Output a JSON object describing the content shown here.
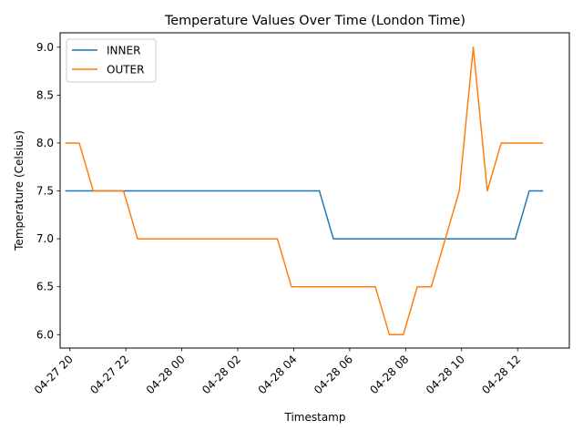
{
  "chart_data": {
    "type": "line",
    "title": "Temperature Values Over Time (London Time)",
    "xlabel": "Timestamp",
    "ylabel": "Temperature (Celsius)",
    "x_range": [
      "2026-04-27T19:39",
      "2026-04-28T13:51"
    ],
    "x_ticks": [
      {
        "t": "2026-04-27T20:00",
        "label": "04-27 20"
      },
      {
        "t": "2026-04-27T22:00",
        "label": "04-27 22"
      },
      {
        "t": "2026-04-28T00:00",
        "label": "04-28 00"
      },
      {
        "t": "2026-04-28T02:00",
        "label": "04-28 02"
      },
      {
        "t": "2026-04-28T04:00",
        "label": "04-28 04"
      },
      {
        "t": "2026-04-28T06:00",
        "label": "04-28 06"
      },
      {
        "t": "2026-04-28T08:00",
        "label": "04-28 08"
      },
      {
        "t": "2026-04-28T10:00",
        "label": "04-28 10"
      },
      {
        "t": "2026-04-28T12:00",
        "label": "04-28 12"
      }
    ],
    "ylim": [
      5.86,
      9.15
    ],
    "y_ticks": [
      "6.0",
      "6.5",
      "7.0",
      "7.5",
      "8.0",
      "8.5",
      "9.0"
    ],
    "grid": false,
    "legend_position": "top-left",
    "series": [
      {
        "name": "INNER",
        "color": "#1f77b4",
        "points": [
          [
            "2026-04-27T19:50",
            7.5
          ],
          [
            "2026-04-28T04:55",
            7.5
          ],
          [
            "2026-04-28T05:25",
            7.0
          ],
          [
            "2026-04-28T11:55",
            7.0
          ],
          [
            "2026-04-28T12:25",
            7.5
          ],
          [
            "2026-04-28T12:55",
            7.5
          ]
        ]
      },
      {
        "name": "OUTER",
        "color": "#ff7f0e",
        "points": [
          [
            "2026-04-27T19:50",
            8.0
          ],
          [
            "2026-04-27T20:20",
            8.0
          ],
          [
            "2026-04-27T20:50",
            7.5
          ],
          [
            "2026-04-27T21:55",
            7.5
          ],
          [
            "2026-04-27T22:25",
            7.0
          ],
          [
            "2026-04-28T03:25",
            7.0
          ],
          [
            "2026-04-28T03:55",
            6.5
          ],
          [
            "2026-04-28T06:55",
            6.5
          ],
          [
            "2026-04-28T07:25",
            6.0
          ],
          [
            "2026-04-28T07:55",
            6.0
          ],
          [
            "2026-04-28T08:25",
            6.5
          ],
          [
            "2026-04-28T08:55",
            6.5
          ],
          [
            "2026-04-28T09:55",
            7.5
          ],
          [
            "2026-04-28T10:25",
            9.0
          ],
          [
            "2026-04-28T10:55",
            7.5
          ],
          [
            "2026-04-28T11:25",
            8.0
          ],
          [
            "2026-04-28T12:55",
            8.0
          ]
        ]
      }
    ]
  }
}
